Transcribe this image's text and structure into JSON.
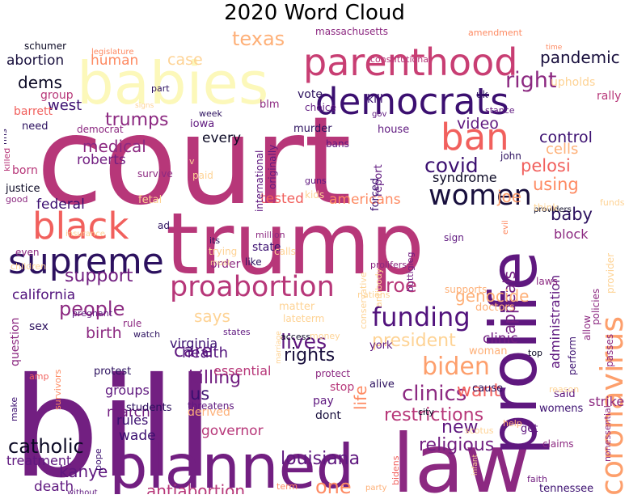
{
  "chart_data": {
    "type": "wordcloud",
    "title": "2020 Word Cloud",
    "words": [
      {
        "text": "court",
        "color": "#b73779"
      },
      {
        "text": "bill",
        "color": "#721f81"
      },
      {
        "text": "trump",
        "color": "#b73779"
      },
      {
        "text": "babies",
        "color": "#fcf8ba"
      },
      {
        "text": "planned",
        "color": "#721f81"
      },
      {
        "text": "law",
        "color": "#8c2981"
      },
      {
        "text": "prolife",
        "color": "#5f187f"
      },
      {
        "text": "parenthood",
        "color": "#c83e73"
      },
      {
        "text": "democrats",
        "color": "#3b0f70"
      },
      {
        "text": "coronavirus",
        "color": "#fd9f6c"
      },
      {
        "text": "supreme",
        "color": "#2c115f"
      },
      {
        "text": "black",
        "color": "#f1605d"
      },
      {
        "text": "women",
        "color": "#180f3d"
      },
      {
        "text": "ban",
        "color": "#f1605d"
      },
      {
        "text": "proabortion",
        "color": "#b73779"
      },
      {
        "text": "funding",
        "color": "#51127c"
      },
      {
        "text": "biden",
        "color": "#fd9f6c"
      },
      {
        "text": "rights",
        "color": "#180f3d"
      },
      {
        "text": "right",
        "color": "#8c2981"
      },
      {
        "text": "people",
        "color": "#8c2981"
      },
      {
        "text": "clinics",
        "color": "#8c2981"
      },
      {
        "text": "catholic",
        "color": "#0b0924"
      },
      {
        "text": "texas",
        "color": "#feb078"
      },
      {
        "text": "covid",
        "color": "#3b0f70"
      },
      {
        "text": "louisiana",
        "color": "#5f187f"
      },
      {
        "text": "killing",
        "color": "#721f81"
      },
      {
        "text": "religious",
        "color": "#721f81"
      },
      {
        "text": "restrictions",
        "color": "#b73779"
      },
      {
        "text": "support",
        "color": "#721f81"
      },
      {
        "text": "trumps",
        "color": "#8c2981"
      },
      {
        "text": "medical",
        "color": "#8c2981"
      },
      {
        "text": "roe",
        "color": "#b73779"
      },
      {
        "text": "lives",
        "color": "#5f187f"
      },
      {
        "text": "care",
        "color": "#5f187f"
      },
      {
        "text": "new",
        "color": "#5f187f"
      },
      {
        "text": "one",
        "color": "#fe8a62"
      },
      {
        "text": "want",
        "color": "#f1605d"
      },
      {
        "text": "baby",
        "color": "#2c115f"
      },
      {
        "text": "president",
        "color": "#fed395"
      },
      {
        "text": "pandemic",
        "color": "#180f3d"
      },
      {
        "text": "west",
        "color": "#3b0f70"
      },
      {
        "text": "kanye",
        "color": "#5f187f"
      },
      {
        "text": "antiabortion",
        "color": "#b73779"
      },
      {
        "text": "appeals",
        "color": "#721f81"
      },
      {
        "text": "us",
        "color": "#3b0f70"
      },
      {
        "text": "california",
        "color": "#51127c"
      },
      {
        "text": "health",
        "color": "#51127c"
      },
      {
        "text": "pelosi",
        "color": "#f1605d"
      },
      {
        "text": "using",
        "color": "#fe8a62"
      },
      {
        "text": "genocide",
        "color": "#feb078"
      },
      {
        "text": "joe",
        "color": "#fd9f6c"
      },
      {
        "text": "life",
        "color": "#fe8a62"
      },
      {
        "text": "says",
        "color": "#fed395"
      },
      {
        "text": "birth",
        "color": "#8c2981"
      },
      {
        "text": "human",
        "color": "#fe8a62"
      },
      {
        "text": "case",
        "color": "#fed395"
      },
      {
        "text": "dems",
        "color": "#0b0924"
      },
      {
        "text": "control",
        "color": "#3b0f70"
      },
      {
        "text": "abortion",
        "color": "#180f3d"
      },
      {
        "text": "video",
        "color": "#5f187f"
      },
      {
        "text": "cells",
        "color": "#feb078"
      },
      {
        "text": "roberts",
        "color": "#721f81"
      },
      {
        "text": "every",
        "color": "#0b0924"
      },
      {
        "text": "federal",
        "color": "#3b0f70"
      },
      {
        "text": "americans",
        "color": "#fe8a62"
      },
      {
        "text": "tested",
        "color": "#f1605d"
      },
      {
        "text": "syndrome",
        "color": "#0b0924"
      },
      {
        "text": "death",
        "color": "#5f187f"
      },
      {
        "text": "treatment",
        "color": "#5f187f"
      },
      {
        "text": "governor",
        "color": "#b73779"
      },
      {
        "text": "wade",
        "color": "#3b0f70"
      },
      {
        "text": "march",
        "color": "#721f81"
      },
      {
        "text": "groups",
        "color": "#5f187f"
      },
      {
        "text": "rules",
        "color": "#3b0f70"
      },
      {
        "text": "virginia",
        "color": "#3b0f70"
      },
      {
        "text": "essential",
        "color": "#b73779"
      },
      {
        "text": "clinic",
        "color": "#721f81"
      },
      {
        "text": "block",
        "color": "#8c2981"
      },
      {
        "text": "administration",
        "color": "#5f187f"
      },
      {
        "text": "strikes",
        "color": "#8c2981"
      },
      {
        "text": "group",
        "color": "#b73779"
      },
      {
        "text": "born",
        "color": "#b73779"
      },
      {
        "text": "justice",
        "color": "#0b0924"
      },
      {
        "text": "need",
        "color": "#2c115f"
      },
      {
        "text": "barrett",
        "color": "#f1605d"
      },
      {
        "text": "upholds",
        "color": "#fed395"
      },
      {
        "text": "rally",
        "color": "#b73779"
      },
      {
        "text": "state",
        "color": "#3b0f70"
      },
      {
        "text": "order",
        "color": "#8c2981"
      },
      {
        "text": "sex",
        "color": "#2c115f"
      },
      {
        "text": "question",
        "color": "#8c2981"
      },
      {
        "text": "protest",
        "color": "#2c115f"
      },
      {
        "text": "students",
        "color": "#2c115f"
      },
      {
        "text": "derived",
        "color": "#feb078"
      },
      {
        "text": "kill",
        "color": "#3b0f70"
      },
      {
        "text": "house",
        "color": "#5f187f"
      },
      {
        "text": "vote",
        "color": "#2c115f"
      },
      {
        "text": "murder",
        "color": "#2c115f"
      },
      {
        "text": "report",
        "color": "#5f187f"
      },
      {
        "text": "forced",
        "color": "#3b0f70"
      },
      {
        "text": "stop",
        "color": "#b73779"
      },
      {
        "text": "pay",
        "color": "#5f187f"
      },
      {
        "text": "dont",
        "color": "#180f3d"
      },
      {
        "text": "cause",
        "color": "#2c115f"
      },
      {
        "text": "woman",
        "color": "#feb078"
      },
      {
        "text": "get",
        "color": "#5f187f"
      },
      {
        "text": "tennessee",
        "color": "#3b0f70"
      },
      {
        "text": "womens",
        "color": "#3b0f70"
      },
      {
        "text": "said",
        "color": "#5f187f"
      },
      {
        "text": "claims",
        "color": "#8c2981"
      },
      {
        "text": "perform",
        "color": "#3b0f70"
      },
      {
        "text": "allow",
        "color": "#8c2981"
      },
      {
        "text": "policies",
        "color": "#8c2981"
      },
      {
        "text": "passes",
        "color": "#8c2981"
      },
      {
        "text": "provider",
        "color": "#fed395"
      },
      {
        "text": "york",
        "color": "#5f187f"
      },
      {
        "text": "alive",
        "color": "#2c115f"
      },
      {
        "text": "doctors",
        "color": "#feb078"
      },
      {
        "text": "supports",
        "color": "#feb078"
      },
      {
        "text": "matter",
        "color": "#fed395"
      },
      {
        "text": "lateterm",
        "color": "#fed395"
      },
      {
        "text": "blm",
        "color": "#8c2981"
      },
      {
        "text": "schumer",
        "color": "#0b0924"
      },
      {
        "text": "hhs",
        "color": "#2c115f"
      },
      {
        "text": "killed",
        "color": "#b73779"
      },
      {
        "text": "good",
        "color": "#8c2981"
      },
      {
        "text": "even",
        "color": "#8c2981"
      },
      {
        "text": "children",
        "color": "#fed395"
      },
      {
        "text": "pregnant",
        "color": "#5f187f"
      },
      {
        "text": "rule",
        "color": "#8c2981"
      },
      {
        "text": "watch",
        "color": "#2c115f"
      },
      {
        "text": "states",
        "color": "#5f187f"
      },
      {
        "text": "access",
        "color": "#0b0924"
      },
      {
        "text": "money",
        "color": "#fed395"
      },
      {
        "text": "amp",
        "color": "#f1605d"
      },
      {
        "text": "survivors",
        "color": "#fe8a62"
      },
      {
        "text": "make",
        "color": "#3b0f70"
      },
      {
        "text": "pope",
        "color": "#3b0f70"
      },
      {
        "text": "without",
        "color": "#5f187f"
      },
      {
        "text": "term",
        "color": "#fe8a62"
      },
      {
        "text": "party",
        "color": "#feb078"
      },
      {
        "text": "bidens",
        "color": "#f1605d"
      },
      {
        "text": "city",
        "color": "#0b0924"
      },
      {
        "text": "scotus",
        "color": "#fed395"
      },
      {
        "text": "faith",
        "color": "#721f81"
      },
      {
        "text": "help",
        "color": "#feb078"
      },
      {
        "text": "top",
        "color": "#0b0924"
      },
      {
        "text": "reason",
        "color": "#fed395"
      },
      {
        "text": "nonessential",
        "color": "#8c2981"
      },
      {
        "text": "funds",
        "color": "#fed395"
      },
      {
        "text": "providers",
        "color": "#0b0924"
      },
      {
        "text": "evil",
        "color": "#fe8a62"
      },
      {
        "text": "think",
        "color": "#fed395"
      },
      {
        "text": "laws",
        "color": "#8c2981"
      },
      {
        "text": "buttigieg",
        "color": "#721f81"
      },
      {
        "text": "sign",
        "color": "#5f187f"
      },
      {
        "text": "prolifers",
        "color": "#8c2981"
      },
      {
        "text": "conservative",
        "color": "#fed395"
      },
      {
        "text": "nations",
        "color": "#fed395"
      },
      {
        "text": "antibody",
        "color": "#fed395"
      },
      {
        "text": "like",
        "color": "#2c115f"
      },
      {
        "text": "calls",
        "color": "#fed395"
      },
      {
        "text": "million",
        "color": "#8c2981"
      },
      {
        "text": "trying",
        "color": "#fed395"
      },
      {
        "text": "must",
        "color": "#fed395"
      },
      {
        "text": "its",
        "color": "#2c115f"
      },
      {
        "text": "ad",
        "color": "#2c115f"
      },
      {
        "text": "insurance",
        "color": "#fed395"
      },
      {
        "text": "fetal",
        "color": "#fed395"
      },
      {
        "text": "paid",
        "color": "#fed395"
      },
      {
        "text": "survive",
        "color": "#8c2981"
      },
      {
        "text": "democrat",
        "color": "#8c2981"
      },
      {
        "text": "iowa",
        "color": "#5f187f"
      },
      {
        "text": "week",
        "color": "#2c115f"
      },
      {
        "text": "international",
        "color": "#5f187f"
      },
      {
        "text": "originally",
        "color": "#5f187f"
      },
      {
        "text": "choice",
        "color": "#5f187f"
      },
      {
        "text": "bans",
        "color": "#5f187f"
      },
      {
        "text": "guns",
        "color": "#5f187f"
      },
      {
        "text": "kids",
        "color": "#fed395"
      },
      {
        "text": "john",
        "color": "#2c115f"
      },
      {
        "text": "uk",
        "color": "#2c115f"
      },
      {
        "text": "stance",
        "color": "#5f187f"
      },
      {
        "text": "gov",
        "color": "#5f187f"
      },
      {
        "text": "massachusetts",
        "color": "#8c2981"
      },
      {
        "text": "constitutional",
        "color": "#b73779"
      },
      {
        "text": "amendment",
        "color": "#fe8a62"
      },
      {
        "text": "legislature",
        "color": "#fe8a62"
      },
      {
        "text": "time",
        "color": "#fe8a62"
      },
      {
        "text": "part",
        "color": "#2c115f"
      },
      {
        "text": "signs",
        "color": "#fed395"
      },
      {
        "text": "protect",
        "color": "#8c2981"
      },
      {
        "text": "threatens",
        "color": "#5f187f"
      },
      {
        "text": "marriage",
        "color": "#fed395"
      },
      {
        "text": "infant",
        "color": "#fed395"
      },
      {
        "text": "v",
        "color": "#fed395"
      }
    ]
  }
}
